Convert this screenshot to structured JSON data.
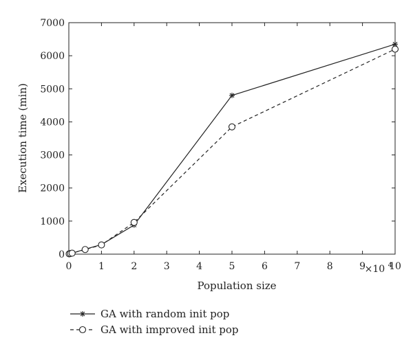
{
  "chart_data": {
    "type": "line",
    "xlabel": "Population size",
    "ylabel": "Execution time (min)",
    "x_multiplier_label": "×10",
    "x_multiplier_exp": "4",
    "xlim": [
      0,
      10
    ],
    "ylim": [
      0,
      7000
    ],
    "xticks": [
      "0",
      "1",
      "2",
      "3",
      "4",
      "5",
      "6",
      "7",
      "8",
      "9",
      "10"
    ],
    "yticks": [
      "0",
      "1000",
      "2000",
      "3000",
      "4000",
      "5000",
      "6000",
      "7000"
    ],
    "grid": false,
    "legend_position": "bottom-left, below plot",
    "series": [
      {
        "name": "GA with random init pop",
        "style": "solid",
        "marker": "star",
        "x": [
          0.01,
          0.05,
          0.1,
          0.5,
          1,
          2,
          5,
          10
        ],
        "y": [
          10,
          20,
          30,
          150,
          290,
          880,
          4800,
          6350
        ]
      },
      {
        "name": "GA with improved init pop",
        "style": "dashed",
        "marker": "circle",
        "x": [
          0.01,
          0.05,
          0.1,
          0.5,
          1,
          2,
          5,
          10
        ],
        "y": [
          10,
          20,
          30,
          140,
          280,
          960,
          3850,
          6200
        ]
      }
    ]
  }
}
